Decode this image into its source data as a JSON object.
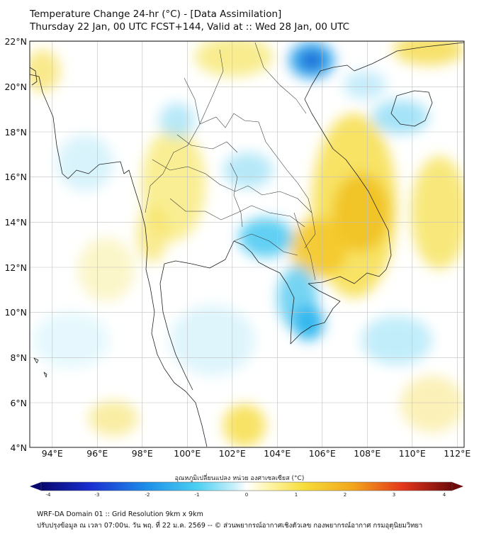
{
  "title": {
    "line1": "Temperature Change 24-hr (°C) - [Data Assimilation]",
    "line2": "Thursday 22 Jan, 00 UTC FCST+144, Valid at :: Wed 28 Jan, 00 UTC"
  },
  "map": {
    "lat_range": [
      4,
      22
    ],
    "lon_range": [
      93,
      112
    ],
    "lat_labels": [
      "22°N",
      "20°N",
      "18°N",
      "16°N",
      "14°N",
      "12°N",
      "10°N",
      "8°N",
      "6°N",
      "4°N"
    ],
    "lon_labels": [
      "94°E",
      "96°E",
      "98°E",
      "100°E",
      "102°E",
      "104°E",
      "106°E",
      "108°E",
      "110°E",
      "112°E"
    ]
  },
  "colorbar": {
    "title": "อุณหภูมิเปลี่ยนแปลง หน่วย องศาเซลเซียส (°C)",
    "range": [
      -4,
      4
    ],
    "ticks": [
      "-4",
      "-3",
      "-2",
      "-1",
      "0",
      "1",
      "2",
      "3",
      "4"
    ]
  },
  "footer": {
    "line1": "WRF-DA Domain 01 :: Grid Resolution 9km x 9km",
    "line2": "ปรับปรุงข้อมูล ณ เวลา 07:00น. วัน พฤ. ที่ 22 ม.ค. 2569 -- © ส่วนพยากรณ์อากาศเชิงตัวเลข กองพยากรณ์อากาศ กรมอุตุนิยมวิทยา"
  },
  "colors": {
    "warm": "#f4d02a",
    "cool": "#38c4ee",
    "neutral": "#ffffff",
    "coast": "#222222"
  }
}
